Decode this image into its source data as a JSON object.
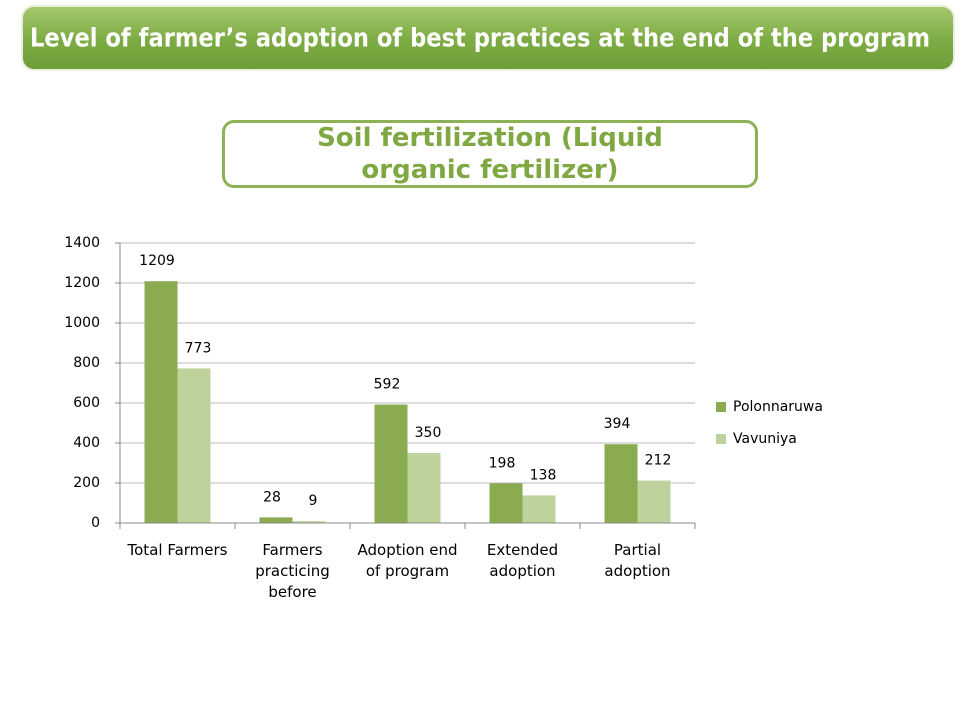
{
  "chart_data": {
    "type": "bar",
    "title": "Level of farmer’s adoption of best practices at the end of the program",
    "subtitle": "Soil fertilization  (Liquid organic fertilizer)",
    "categories": [
      "Total Farmers",
      "Farmers practicing before",
      "Adoption end of program",
      "Extended adoption",
      "Partial adoption"
    ],
    "series": [
      {
        "name": "Polonnaruwa",
        "color": "#8aab4f",
        "values": [
          1209,
          28,
          592,
          198,
          394
        ]
      },
      {
        "name": "Vavuniya",
        "color": "#bdd39b",
        "values": [
          773,
          9,
          350,
          138,
          212
        ]
      }
    ],
    "ylim": [
      0,
      1400
    ],
    "yticks": [
      0,
      200,
      400,
      600,
      800,
      1000,
      1200,
      1400
    ],
    "grid": true,
    "legend": "right"
  }
}
